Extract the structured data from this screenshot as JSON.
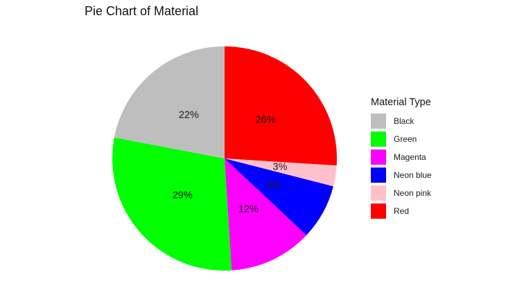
{
  "chart_data": {
    "type": "pie",
    "title": "Pie Chart of Material",
    "legend_title": "Material Type",
    "legend_position": "right",
    "start": "top",
    "direction": "clockwise",
    "slices": [
      {
        "name": "Red",
        "percent": 26,
        "label": "26%",
        "color": "#FF0000"
      },
      {
        "name": "Neon pink",
        "percent": 3,
        "label": "3%",
        "color": "#FFC0CB"
      },
      {
        "name": "Neon blue",
        "percent": 8,
        "label": "8%",
        "color": "#0000FF"
      },
      {
        "name": "Magenta",
        "percent": 12,
        "label": "12%",
        "color": "#FF00FF"
      },
      {
        "name": "Green",
        "percent": 29,
        "label": "29%",
        "color": "#00FF00"
      },
      {
        "name": "Black",
        "percent": 22,
        "label": "22%",
        "color": "#BEBEBE"
      }
    ],
    "legend": [
      {
        "name": "Black",
        "color": "#BEBEBE"
      },
      {
        "name": "Green",
        "color": "#00FF00"
      },
      {
        "name": "Magenta",
        "color": "#FF00FF"
      },
      {
        "name": "Neon blue",
        "color": "#0000FF"
      },
      {
        "name": "Neon pink",
        "color": "#FFC0CB"
      },
      {
        "name": "Red",
        "color": "#FF0000"
      }
    ]
  }
}
